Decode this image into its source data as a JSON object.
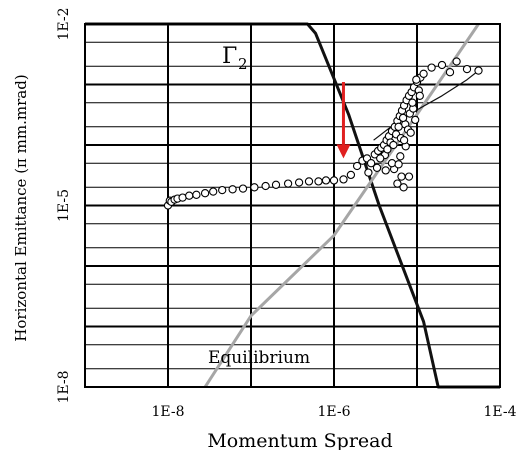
{
  "chart_data": {
    "type": "scatter",
    "xlabel": "Momentum Spread",
    "ylabel": "Horizontal Emittance (π mm.mrad)",
    "xscale": "log",
    "yscale": "log",
    "xlim": [
      1e-09,
      0.0001
    ],
    "ylim": [
      1e-08,
      0.01
    ],
    "x_ticks": [
      {
        "value": 1e-08,
        "label": "1E-8"
      },
      {
        "value": 1e-06,
        "label": "1E-6"
      },
      {
        "value": 0.0001,
        "label": "1E-4"
      }
    ],
    "y_ticks": [
      {
        "value": 1e-08,
        "label": "1E-8"
      },
      {
        "value": 1e-05,
        "label": "1E-5"
      },
      {
        "value": 0.01,
        "label": "1E-2"
      }
    ],
    "grid": true,
    "annotations": {
      "gamma_label": "Γ",
      "gamma_subscript": "2",
      "equilibrium_label": "Equilibrium"
    },
    "series": [
      {
        "style": "black-thick-line",
        "color": "#111111",
        "x": [
          1e-09,
          4.8e-07,
          6e-07,
          1.5e-06,
          3.5e-06,
          1.2e-05,
          1.8e-05,
          0.0001
        ],
        "y": [
          0.01,
          0.01,
          0.007,
          0.00032,
          1e-05,
          1.2e-07,
          1e-08,
          1e-08
        ]
      },
      {
        "style": "gray-line",
        "color": "#a6a6a6",
        "x": [
          2.8e-08,
          1e-07,
          1e-06,
          1e-05,
          5.5e-05
        ],
        "y": [
          1e-08,
          1.5e-07,
          3.2e-06,
          0.00032,
          0.01
        ]
      },
      {
        "style": "open-circle-markers",
        "color": "#000000",
        "x": [
          1e-08,
          1.05e-08,
          1.1e-08,
          1.2e-08,
          1.3e-08,
          1.5e-08,
          1.8e-08,
          2.2e-08,
          2.8e-08,
          3.5e-08,
          4.5e-08,
          6e-08,
          8e-08,
          1.1e-07,
          1.5e-07,
          2e-07,
          2.8e-07,
          3.8e-07,
          5e-07,
          6.5e-07,
          8e-07,
          1e-06,
          1.3e-06,
          1.6e-06,
          1.9e-06,
          2.2e-06,
          2.5e-06,
          2.8e-06,
          3.1e-06,
          3.4e-06,
          3.7e-06,
          4e-06,
          4.3e-06,
          4.6e-06,
          5e-06,
          5.4e-06,
          5.8e-06,
          6.2e-06,
          6.6e-06,
          7e-06,
          7.5e-06,
          8e-06,
          8.6e-06,
          9.2e-06,
          1e-05,
          1.1e-05,
          2.6e-06,
          3.3e-06,
          4.1e-06,
          4.8e-06,
          5.6e-06,
          6.4e-06,
          7.2e-06,
          8.2e-06,
          9e-06,
          3.6e-06,
          4.4e-06,
          5.2e-06,
          6e-06,
          6.8e-06,
          7.8e-06,
          8.8e-06,
          1.05e-05,
          4.2e-06,
          5.3e-06,
          6.3e-06,
          7.3e-06,
          8.4e-06,
          9.5e-06,
          1.2e-05,
          1.5e-05,
          2e-05,
          2.5e-05,
          3e-05,
          4e-05,
          5.5e-05,
          5.8e-06,
          6.9e-06,
          8e-06,
          5e-06,
          6e-06,
          7e-06,
          6.5e-06,
          1.08e-05,
          9.8e-06
        ],
        "y": [
          1e-05,
          1.2e-05,
          1.15e-05,
          1.25e-05,
          1.3e-05,
          1.35e-05,
          1.45e-05,
          1.5e-05,
          1.6e-05,
          1.7e-05,
          1.8e-05,
          1.85e-05,
          1.9e-05,
          2e-05,
          2.1e-05,
          2.2e-05,
          2.3e-05,
          2.4e-05,
          2.5e-05,
          2.5e-05,
          2.6e-05,
          2.6e-05,
          2.7e-05,
          3.2e-05,
          4.5e-05,
          5.5e-05,
          6e-05,
          5e-05,
          7e-05,
          8e-05,
          9e-05,
          0.0001,
          0.00012,
          0.00014,
          0.00017,
          0.0002,
          0.00025,
          0.0003,
          0.00037,
          0.00045,
          0.00055,
          0.00065,
          0.00075,
          0.0009,
          0.0011,
          0.0013,
          3.5e-05,
          4.2e-05,
          6.8e-05,
          0.00011,
          0.00015,
          0.00013,
          0.00022,
          0.00033,
          0.0004,
          6e-05,
          8.5e-05,
          0.0001,
          0.0002,
          0.00028,
          0.00018,
          0.0005,
          0.0008,
          3.8e-05,
          4e-05,
          6.5e-05,
          9.5e-05,
          0.00016,
          0.00026,
          0.0015,
          0.0019,
          0.0021,
          0.0016,
          0.0024,
          0.0018,
          0.0017,
          2.3e-05,
          2e-05,
          3e-05,
          5e-05,
          4.8e-05,
          0.00012,
          3e-05,
          0.00065,
          0.0012
        ]
      },
      {
        "style": "black-thin-line",
        "color": "#111111",
        "x": [
          3e-06,
          6e-06,
          1e-05,
          2e-05,
          4e-05,
          5.5e-05
        ],
        "y": [
          0.00012,
          0.00025,
          0.00038,
          0.00065,
          0.0012,
          0.0017
        ]
      }
    ],
    "marker": {
      "type": "arrow",
      "color": "#e02020",
      "x": 1.3e-06,
      "y_start": 0.0011,
      "y_end": 6e-05
    }
  }
}
